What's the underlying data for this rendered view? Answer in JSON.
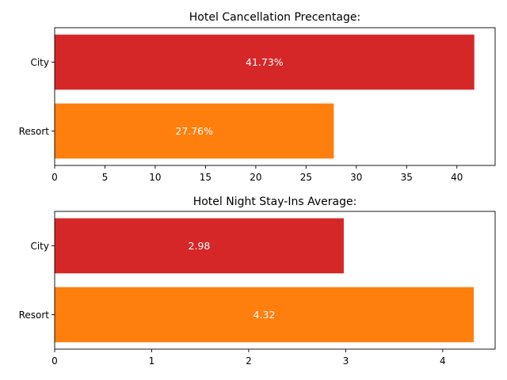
{
  "chart_data": [
    {
      "type": "bar",
      "orientation": "horizontal",
      "title": "Hotel Cancellation Precentage:",
      "xlabel": "",
      "ylabel": "",
      "categories": [
        "City",
        "Resort"
      ],
      "values": [
        41.73,
        27.76
      ],
      "data_labels": [
        "41.73%",
        "27.76%"
      ],
      "colors": [
        "#d62728",
        "#ff7f0e"
      ],
      "xlim": [
        0,
        43.8
      ],
      "xticks": [
        0,
        5,
        10,
        15,
        20,
        25,
        30,
        35,
        40
      ],
      "xtick_labels": [
        "0",
        "5",
        "10",
        "15",
        "20",
        "25",
        "30",
        "35",
        "40"
      ],
      "grid": false,
      "legend": "none"
    },
    {
      "type": "bar",
      "orientation": "horizontal",
      "title": "Hotel Night Stay-Ins Average:",
      "xlabel": "",
      "ylabel": "",
      "categories": [
        "City",
        "Resort"
      ],
      "values": [
        2.98,
        4.32
      ],
      "data_labels": [
        "2.98",
        "4.32"
      ],
      "colors": [
        "#d62728",
        "#ff7f0e"
      ],
      "xlim": [
        0,
        4.54
      ],
      "xticks": [
        0,
        1,
        2,
        3,
        4
      ],
      "xtick_labels": [
        "0",
        "1",
        "2",
        "3",
        "4"
      ],
      "grid": false,
      "legend": "none"
    }
  ]
}
